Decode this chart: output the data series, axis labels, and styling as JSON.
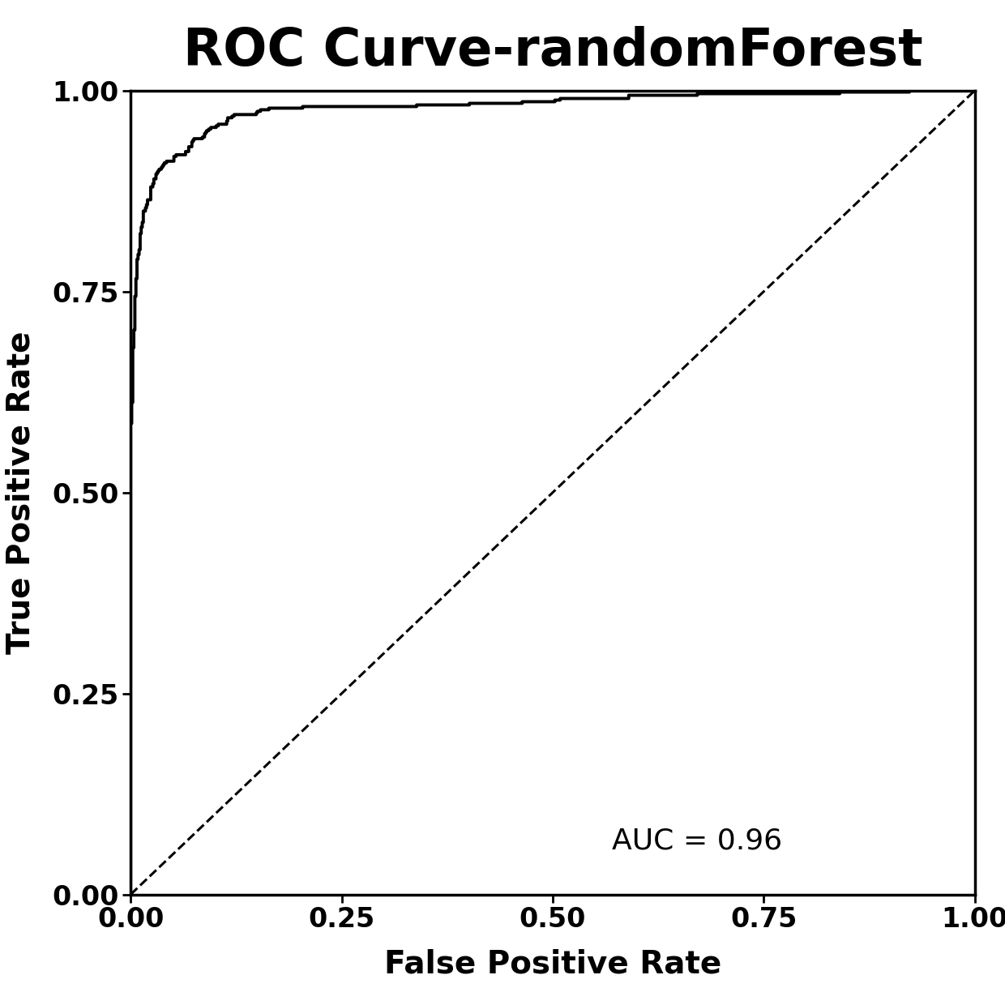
{
  "title": "ROC Curve-randomForest",
  "xlabel": "False Positive Rate",
  "ylabel": "True Positive Rate",
  "auc_text": "AUC = 0.96",
  "auc": 0.96,
  "xlim": [
    0.0,
    1.0
  ],
  "ylim": [
    0.0,
    1.0
  ],
  "xticks": [
    0.0,
    0.25,
    0.5,
    0.75,
    1.0
  ],
  "yticks": [
    0.0,
    0.25,
    0.5,
    0.75,
    1.0
  ],
  "roc_color": "#000000",
  "diag_color": "#000000",
  "background_color": "#ffffff",
  "title_fontsize": 46,
  "axis_label_fontsize": 28,
  "tick_fontsize": 24,
  "auc_fontsize": 26,
  "line_width": 2.8,
  "diag_linewidth": 2.2
}
